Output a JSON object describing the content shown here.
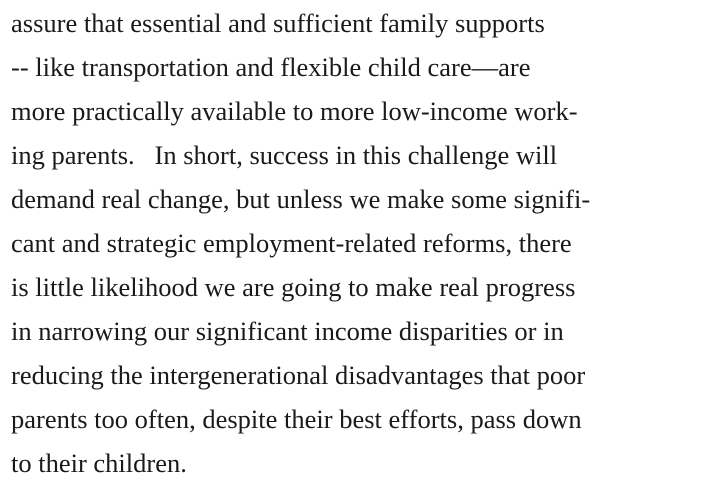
{
  "paragraph": {
    "lines": [
      "assure that essential and sufficient family supports",
      "-- like transportation and flexible child care—are",
      "more practically available to more low-income work-",
      "ing parents.   In short, success in this challenge will",
      "demand real change, but unless we make some signifi-",
      "cant and strategic employment-related reforms, there",
      "is little likelihood we are going to make real progress",
      "in narrowing our significant income disparities or in",
      "reducing the intergenerational disadvantages that poor",
      "parents too often, despite their best efforts, pass down",
      "to their children."
    ]
  }
}
